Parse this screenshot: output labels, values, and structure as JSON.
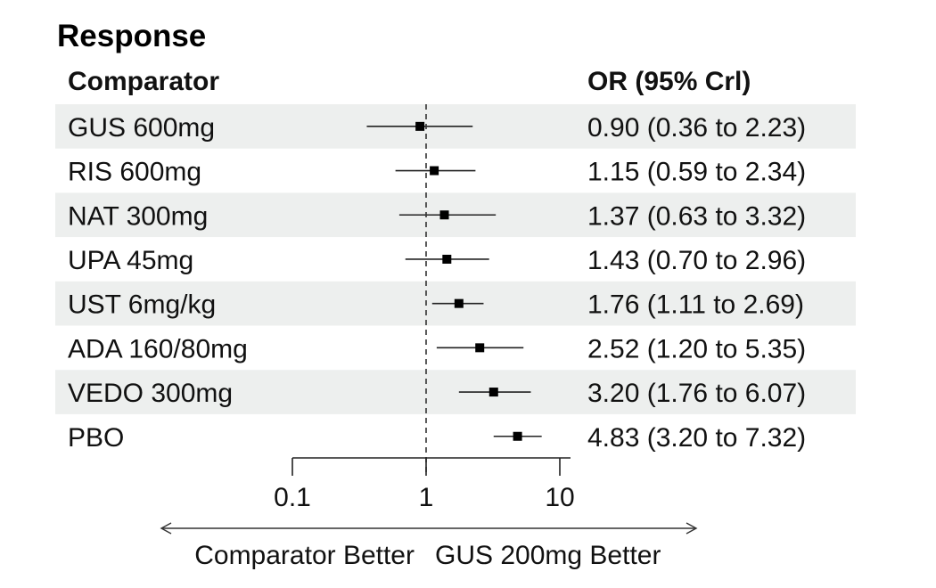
{
  "chart_data": {
    "type": "forest",
    "title": "Response",
    "column_headers": {
      "comparator": "Comparator",
      "estimate": "OR (95% Crl)"
    },
    "x_scale": "log",
    "xlim": [
      0.1,
      10
    ],
    "reference_line": 1,
    "x_ticks": [
      {
        "value": 0.1,
        "label": "0.1"
      },
      {
        "value": 1,
        "label": "1"
      },
      {
        "value": 10,
        "label": "10"
      }
    ],
    "direction_labels": {
      "left": "Comparator Better",
      "right": "GUS 200mg Better"
    },
    "rows": [
      {
        "label": "GUS 600mg",
        "or": 0.9,
        "lower": 0.36,
        "upper": 2.23,
        "text": "0.90 (0.36 to 2.23)",
        "shaded": true
      },
      {
        "label": "RIS 600mg",
        "or": 1.15,
        "lower": 0.59,
        "upper": 2.34,
        "text": "1.15 (0.59 to 2.34)",
        "shaded": false
      },
      {
        "label": "NAT 300mg",
        "or": 1.37,
        "lower": 0.63,
        "upper": 3.32,
        "text": "1.37 (0.63 to 3.32)",
        "shaded": true
      },
      {
        "label": "UPA 45mg",
        "or": 1.43,
        "lower": 0.7,
        "upper": 2.96,
        "text": "1.43 (0.70 to 2.96)",
        "shaded": false
      },
      {
        "label": "UST 6mg/kg",
        "or": 1.76,
        "lower": 1.11,
        "upper": 2.69,
        "text": "1.76 (1.11 to 2.69)",
        "shaded": true
      },
      {
        "label": "ADA 160/80mg",
        "or": 2.52,
        "lower": 1.2,
        "upper": 5.35,
        "text": "2.52 (1.20 to 5.35)",
        "shaded": false
      },
      {
        "label": "VEDO 300mg",
        "or": 3.2,
        "lower": 1.76,
        "upper": 6.07,
        "text": "3.20 (1.76 to 6.07)",
        "shaded": true
      },
      {
        "label": "PBO",
        "or": 4.83,
        "lower": 3.2,
        "upper": 7.32,
        "text": "4.83 (3.20 to 7.32)",
        "shaded": false
      }
    ],
    "colors": {
      "row_shade": "#edefee",
      "marker": "#000000",
      "line": "#222222"
    }
  }
}
